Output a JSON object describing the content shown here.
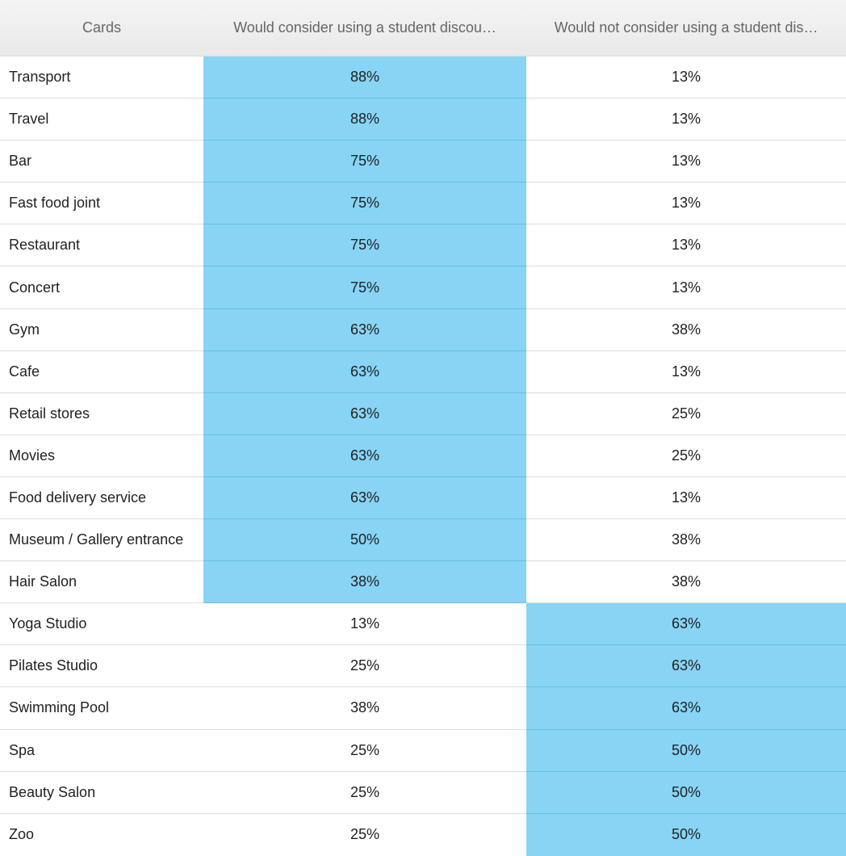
{
  "table": {
    "headers": [
      "Cards",
      "Would consider using a student discou…",
      "Would not consider using a student dis…"
    ],
    "rows": [
      {
        "card": "Transport",
        "consider": "88%",
        "not_consider": "13%",
        "highlight": "consider"
      },
      {
        "card": "Travel",
        "consider": "88%",
        "not_consider": "13%",
        "highlight": "consider"
      },
      {
        "card": "Bar",
        "consider": "75%",
        "not_consider": "13%",
        "highlight": "consider"
      },
      {
        "card": "Fast food joint",
        "consider": "75%",
        "not_consider": "13%",
        "highlight": "consider"
      },
      {
        "card": "Restaurant",
        "consider": "75%",
        "not_consider": "13%",
        "highlight": "consider"
      },
      {
        "card": "Concert",
        "consider": "75%",
        "not_consider": "13%",
        "highlight": "consider"
      },
      {
        "card": "Gym",
        "consider": "63%",
        "not_consider": "38%",
        "highlight": "consider"
      },
      {
        "card": "Cafe",
        "consider": "63%",
        "not_consider": "13%",
        "highlight": "consider"
      },
      {
        "card": "Retail stores",
        "consider": "63%",
        "not_consider": "25%",
        "highlight": "consider"
      },
      {
        "card": "Movies",
        "consider": "63%",
        "not_consider": "25%",
        "highlight": "consider"
      },
      {
        "card": "Food delivery service",
        "consider": "63%",
        "not_consider": "13%",
        "highlight": "consider"
      },
      {
        "card": "Museum / Gallery entrance",
        "consider": "50%",
        "not_consider": "38%",
        "highlight": "consider"
      },
      {
        "card": "Hair Salon",
        "consider": "38%",
        "not_consider": "38%",
        "highlight": "consider"
      },
      {
        "card": "Yoga Studio",
        "consider": "13%",
        "not_consider": "63%",
        "highlight": "not_consider"
      },
      {
        "card": "Pilates Studio",
        "consider": "25%",
        "not_consider": "63%",
        "highlight": "not_consider"
      },
      {
        "card": "Swimming Pool",
        "consider": "38%",
        "not_consider": "63%",
        "highlight": "not_consider"
      },
      {
        "card": "Spa",
        "consider": "25%",
        "not_consider": "50%",
        "highlight": "not_consider"
      },
      {
        "card": "Beauty Salon",
        "consider": "25%",
        "not_consider": "50%",
        "highlight": "not_consider"
      },
      {
        "card": "Zoo",
        "consider": "25%",
        "not_consider": "50%",
        "highlight": "not_consider"
      }
    ]
  },
  "colors": {
    "highlight": "#87d4f5",
    "header_bg": "#eeeeee",
    "header_text": "#666666"
  }
}
